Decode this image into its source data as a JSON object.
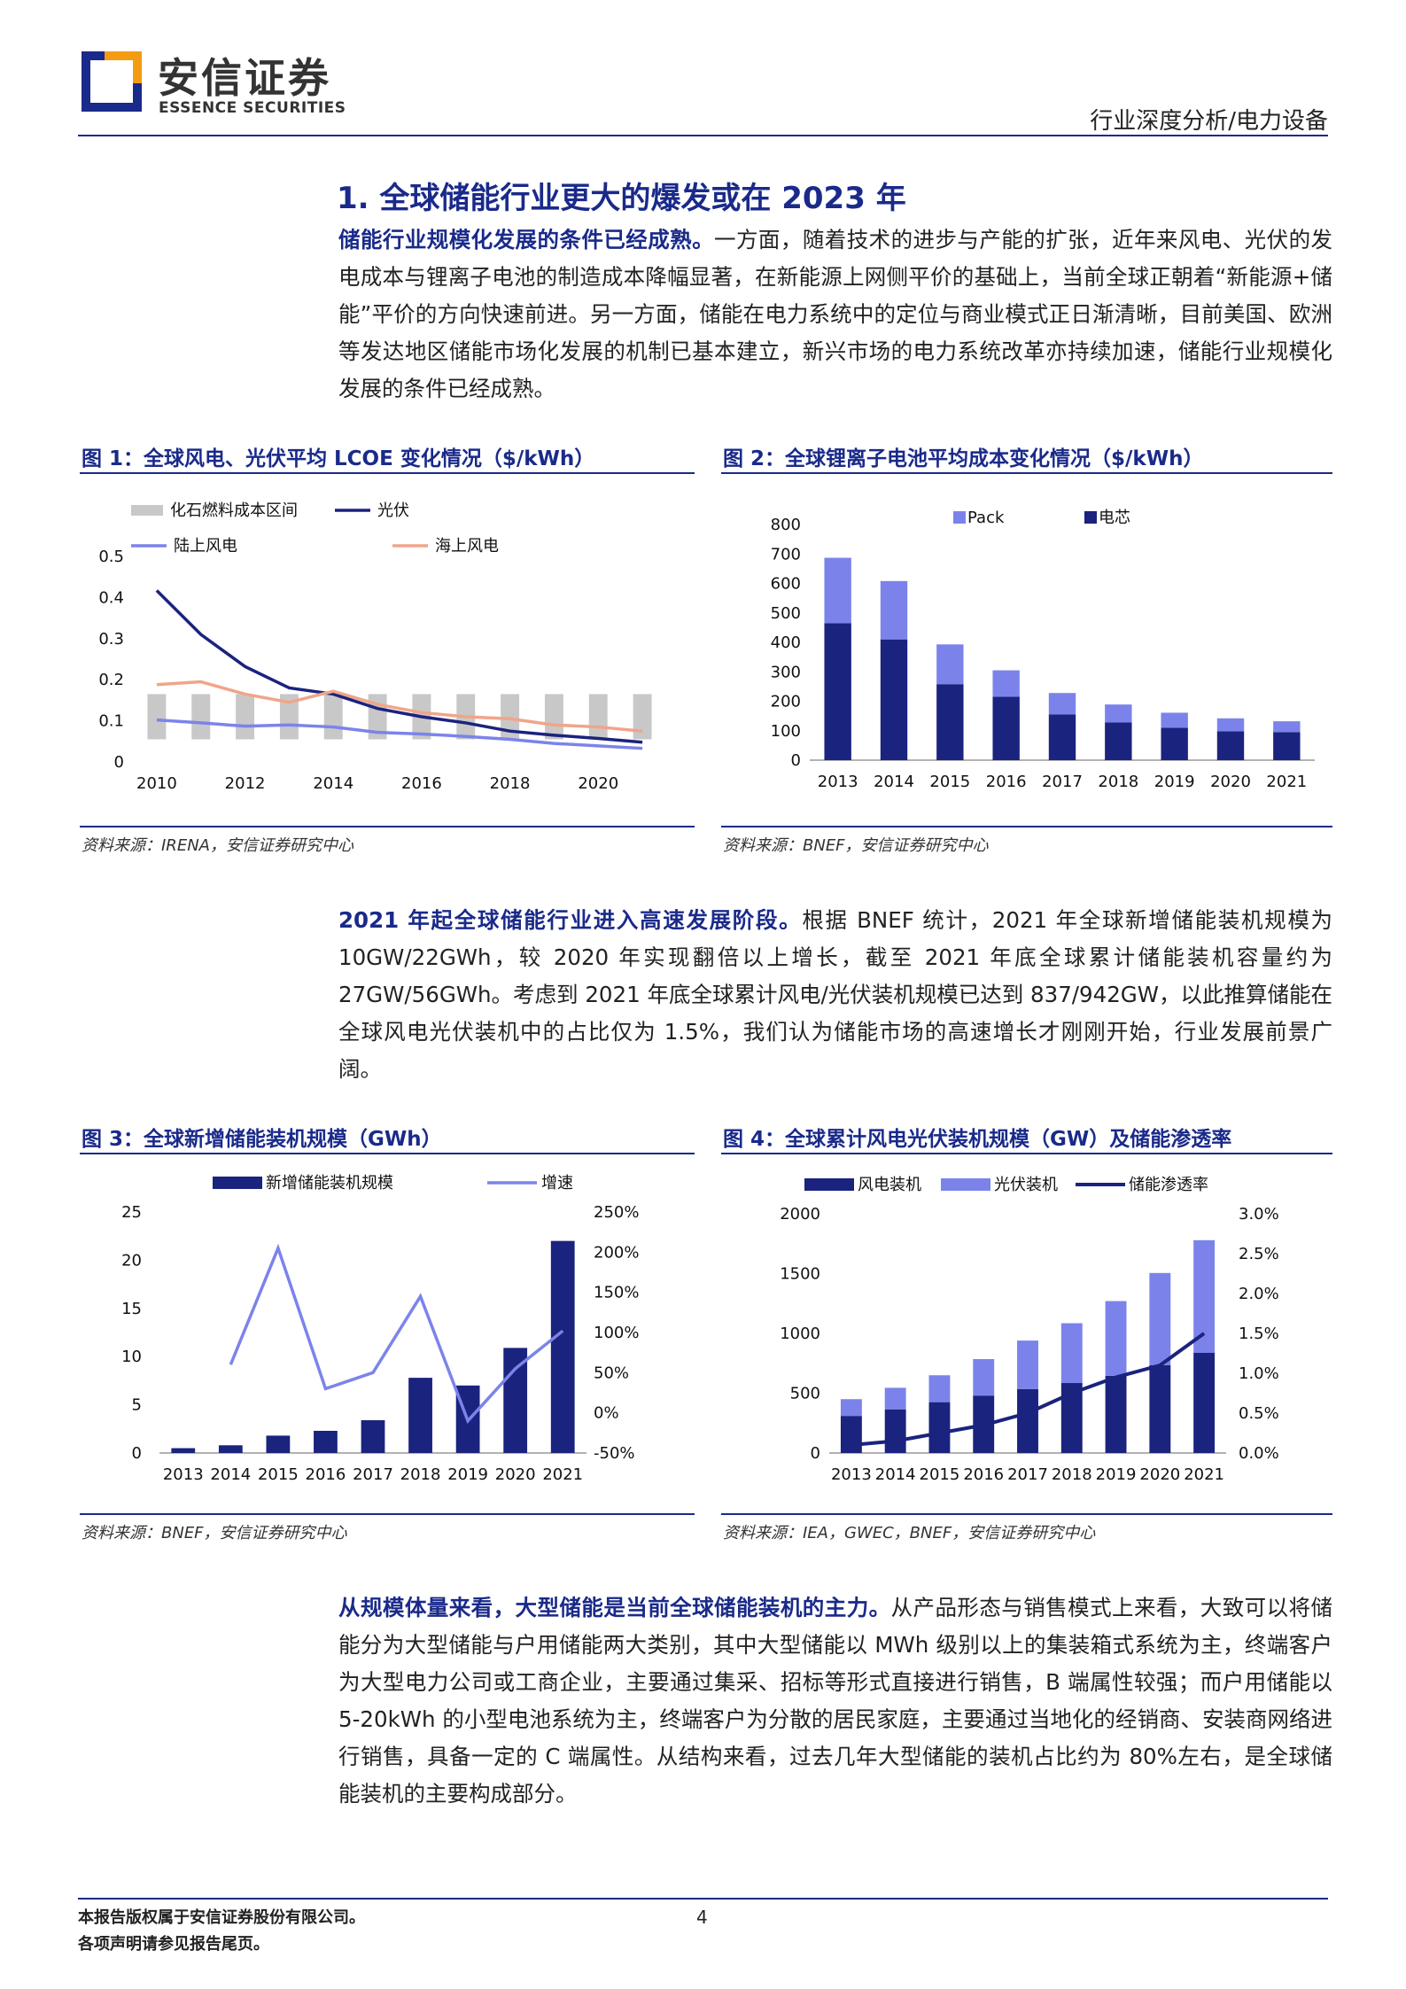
{
  "header": {
    "logo_cn": "安信证券",
    "logo_en": "ESSENCE SECURITIES",
    "category": "行业深度分析/电力设备"
  },
  "section": {
    "title": "1. 全球储能行业更大的爆发或在 2023 年"
  },
  "para1": {
    "lead": "储能行业规模化发展的条件已经成熟。",
    "body": "一方面，随着技术的进步与产能的扩张，近年来风电、光伏的发电成本与锂离子电池的制造成本降幅显著，在新能源上网侧平价的基础上，当前全球正朝着“新能源+储能”平价的方向快速前进。另一方面，储能在电力系统中的定位与商业模式正日渐清晰，目前美国、欧洲等发达地区储能市场化发展的机制已基本建立，新兴市场的电力系统改革亦持续加速，储能行业规模化发展的条件已经成熟。"
  },
  "para2": {
    "lead": "2021 年起全球储能行业进入高速发展阶段。",
    "body": "根据 BNEF 统计，2021 年全球新增储能装机规模为 10GW/22GWh，较 2020 年实现翻倍以上增长，截至 2021 年底全球累计储能装机容量约为 27GW/56GWh。考虑到 2021 年底全球累计风电/光伏装机规模已达到 837/942GW，以此推算储能在全球风电光伏装机中的占比仅为 1.5%，我们认为储能市场的高速增长才刚刚开始，行业发展前景广阔。"
  },
  "para3": {
    "lead": "从规模体量来看，大型储能是当前全球储能装机的主力。",
    "body": "从产品形态与销售模式上来看，大致可以将储能分为大型储能与户用储能两大类别，其中大型储能以 MWh 级别以上的集装箱式系统为主，终端客户为大型电力公司或工商企业，主要通过集采、招标等形式直接进行销售，B 端属性较强；而户用储能以 5-20kWh 的小型电池系统为主，终端客户为分散的居民家庭，主要通过当地化的经销商、安装商网络进行销售，具备一定的 C 端属性。从结构来看，过去几年大型储能的装机占比约为 80%左右，是全球储能装机的主要构成部分。"
  },
  "figures": {
    "fig1": {
      "title": "图 1：全球风电、光伏平均 LCOE 变化情况（$/kWh）",
      "source": "资料来源：IRENA，安信证券研究中心"
    },
    "fig2": {
      "title": "图 2：全球锂离子电池平均成本变化情况（$/kWh）",
      "source": "资料来源：BNEF，安信证券研究中心"
    },
    "fig3": {
      "title": "图 3：全球新增储能装机规模（GWh）",
      "source": "资料来源：BNEF，安信证券研究中心"
    },
    "fig4": {
      "title": "图 4：全球累计风电光伏装机规模（GW）及储能渗透率",
      "source": "资料来源：IEA，GWEC，BNEF，安信证券研究中心"
    }
  },
  "chart_data": [
    {
      "type": "line",
      "x": [
        2010,
        2011,
        2012,
        2013,
        2014,
        2015,
        2016,
        2017,
        2018,
        2019,
        2020,
        2021
      ],
      "xticks": [
        "2010",
        "2012",
        "2014",
        "2016",
        "2018",
        "2020"
      ],
      "yticks": [
        "0",
        "0.1",
        "0.2",
        "0.3",
        "0.4",
        "0.5"
      ],
      "ylim": [
        0,
        0.5
      ],
      "band": {
        "name": "化石燃料成本区间",
        "low": 0.055,
        "high": 0.165,
        "x": [
          2010,
          2011,
          2012,
          2013,
          2014,
          2015,
          2016,
          2017,
          2018,
          2019,
          2020,
          2021
        ]
      },
      "series": [
        {
          "name": "光伏",
          "color": "#1a237e",
          "values": [
            0.417,
            0.31,
            0.232,
            0.18,
            0.165,
            0.13,
            0.11,
            0.095,
            0.075,
            0.065,
            0.057,
            0.048
          ]
        },
        {
          "name": "陆上风电",
          "color": "#7b83eb",
          "values": [
            0.102,
            0.095,
            0.087,
            0.09,
            0.085,
            0.072,
            0.068,
            0.062,
            0.055,
            0.045,
            0.039,
            0.033
          ]
        },
        {
          "name": "海上风电",
          "color": "#f0a58a",
          "values": [
            0.188,
            0.195,
            0.165,
            0.145,
            0.172,
            0.14,
            0.12,
            0.11,
            0.105,
            0.09,
            0.085,
            0.075
          ]
        }
      ]
    },
    {
      "type": "bar",
      "categories": [
        "2013",
        "2014",
        "2015",
        "2016",
        "2017",
        "2018",
        "2019",
        "2020",
        "2021"
      ],
      "yticks": [
        "0",
        "100",
        "200",
        "300",
        "400",
        "500",
        "600",
        "700",
        "800"
      ],
      "ylim": [
        0,
        800
      ],
      "series": [
        {
          "name": "电芯",
          "color": "#1a237e",
          "values": [
            465,
            410,
            258,
            215,
            155,
            128,
            110,
            98,
            95
          ]
        },
        {
          "name": "Pack",
          "color": "#7b83eb",
          "values": [
            222,
            198,
            135,
            90,
            73,
            61,
            51,
            44,
            37
          ]
        }
      ]
    },
    {
      "type": "bar",
      "categories": [
        "2013",
        "2014",
        "2015",
        "2016",
        "2017",
        "2018",
        "2019",
        "2020",
        "2021"
      ],
      "yticks_left": [
        "0",
        "5",
        "10",
        "15",
        "20",
        "25"
      ],
      "yticks_right": [
        "-50%",
        "0%",
        "50%",
        "100%",
        "150%",
        "200%",
        "250%"
      ],
      "ylim": [
        0,
        25
      ],
      "y2lim": [
        -50,
        250
      ],
      "series": [
        {
          "name": "新增储能装机规模",
          "color": "#1a237e",
          "axis": "left",
          "values": [
            0.5,
            0.8,
            1.8,
            2.3,
            3.4,
            7.8,
            7.0,
            10.9,
            22.0
          ]
        },
        {
          "name": "增速",
          "color": "#7b83eb",
          "axis": "right",
          "type": "line",
          "values": [
            null,
            60,
            205,
            30,
            50,
            145,
            -10,
            55,
            102
          ]
        }
      ]
    },
    {
      "type": "bar",
      "categories": [
        "2013",
        "2014",
        "2015",
        "2016",
        "2017",
        "2018",
        "2019",
        "2020",
        "2021"
      ],
      "yticks_left": [
        "0",
        "500",
        "1000",
        "1500",
        "2000"
      ],
      "yticks_right": [
        "0.0%",
        "0.5%",
        "1.0%",
        "1.5%",
        "2.0%",
        "2.5%",
        "3.0%"
      ],
      "ylim": [
        0,
        2000
      ],
      "y2lim": [
        0,
        3.0
      ],
      "series": [
        {
          "name": "风电装机",
          "color": "#1a237e",
          "axis": "left",
          "values": [
            310,
            365,
            425,
            480,
            535,
            585,
            645,
            735,
            837
          ]
        },
        {
          "name": "光伏装机",
          "color": "#7b83eb",
          "axis": "left",
          "values": [
            140,
            180,
            225,
            305,
            405,
            500,
            625,
            770,
            942
          ]
        },
        {
          "name": "储能渗透率",
          "color": "#1a237e",
          "axis": "right",
          "type": "line",
          "values": [
            0.1,
            0.15,
            0.25,
            0.35,
            0.5,
            0.75,
            0.95,
            1.1,
            1.5
          ]
        }
      ]
    }
  ],
  "footer": {
    "line1": "本报告版权属于安信证券股份有限公司。",
    "line2": "各项声明请参见报告尾页。",
    "page": "4"
  }
}
